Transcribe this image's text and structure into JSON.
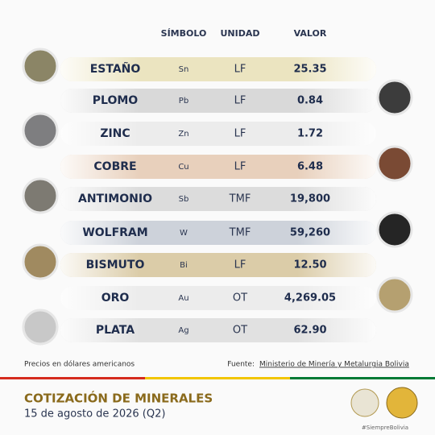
{
  "header": {
    "columns": [
      "SÍMBOLO",
      "UNIDAD",
      "VALOR"
    ]
  },
  "table": {
    "rows": [
      [
        "ESTAÑO",
        "Sn",
        "LF",
        "25.35"
      ],
      [
        "PLOMO",
        "Pb",
        "LF",
        "0.84"
      ],
      [
        "ZINC",
        "Zn",
        "LF",
        "1.72"
      ],
      [
        "COBRE",
        "Cu",
        "LF",
        "6.48"
      ],
      [
        "ANTIMONIO",
        "Sb",
        "TMF",
        "19,800"
      ],
      [
        "WOLFRAM",
        "W",
        "TMF",
        "59,260"
      ],
      [
        "BISMUTO",
        "Bi",
        "LF",
        "12.50"
      ],
      [
        "ORO",
        "Au",
        "OT",
        "4,269.05"
      ],
      [
        "PLATA",
        "Ag",
        "OT",
        "62.90"
      ]
    ]
  },
  "footer": {
    "note": "Precios en dólares americanos",
    "source_label": "Fuente:",
    "source": "Ministerio de Minería y Metalurgia Bolivia",
    "title": "COTIZACIÓN DE MINERALES",
    "date": "15 de agosto de 2026 (Q2)",
    "hashtag": "#SiempreBolivia"
  }
}
